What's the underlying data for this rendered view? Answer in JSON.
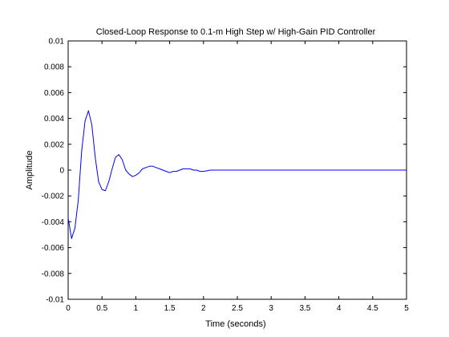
{
  "chart_data": {
    "type": "line",
    "title": "Closed-Loop Response to 0.1-m High Step w/ High-Gain PID Controller",
    "xlabel": "Time (seconds)",
    "ylabel": "Amplitude",
    "xlim": [
      0,
      5
    ],
    "ylim": [
      -0.01,
      0.01
    ],
    "grid": false,
    "x_ticks": [
      "0",
      "0.5",
      "1",
      "1.5",
      "2",
      "2.5",
      "3",
      "3.5",
      "4",
      "4.5",
      "5"
    ],
    "y_ticks": [
      "0.01",
      "0.008",
      "0.006",
      "0.004",
      "0.002",
      "0",
      "-0.002",
      "-0.004",
      "-0.006",
      "-0.008",
      "-0.01"
    ],
    "series": [
      {
        "color": "#0000ff",
        "x": [
          0,
          0.05,
          0.1,
          0.15,
          0.2,
          0.25,
          0.3,
          0.35,
          0.4,
          0.45,
          0.5,
          0.55,
          0.6,
          0.65,
          0.7,
          0.75,
          0.8,
          0.85,
          0.9,
          0.95,
          1.0,
          1.05,
          1.1,
          1.15,
          1.2,
          1.25,
          1.3,
          1.35,
          1.4,
          1.45,
          1.5,
          1.55,
          1.6,
          1.65,
          1.7,
          1.75,
          1.8,
          1.85,
          1.9,
          1.95,
          2.0,
          2.1,
          2.5,
          3.0,
          3.5,
          4.0,
          4.5,
          5.0
        ],
        "y": [
          -0.0037,
          -0.0053,
          -0.0045,
          -0.0023,
          0.0015,
          0.0038,
          0.0046,
          0.0035,
          0.001,
          -0.0009,
          -0.0015,
          -0.0016,
          -0.0009,
          0.0001,
          0.001,
          0.0012,
          0.0008,
          0.0,
          -0.0003,
          -0.0005,
          -0.0004,
          -0.0002,
          0.0001,
          0.0002,
          0.0003,
          0.0003,
          0.0002,
          0.0001,
          0.0,
          -0.0001,
          -0.0002,
          -0.0001,
          -0.0001,
          0.0,
          0.0001,
          0.0001,
          0.0001,
          0.0,
          0.0,
          -0.0001,
          -0.0001,
          0.0,
          0.0,
          0.0,
          0.0,
          0.0,
          0.0,
          0.0
        ]
      }
    ]
  }
}
